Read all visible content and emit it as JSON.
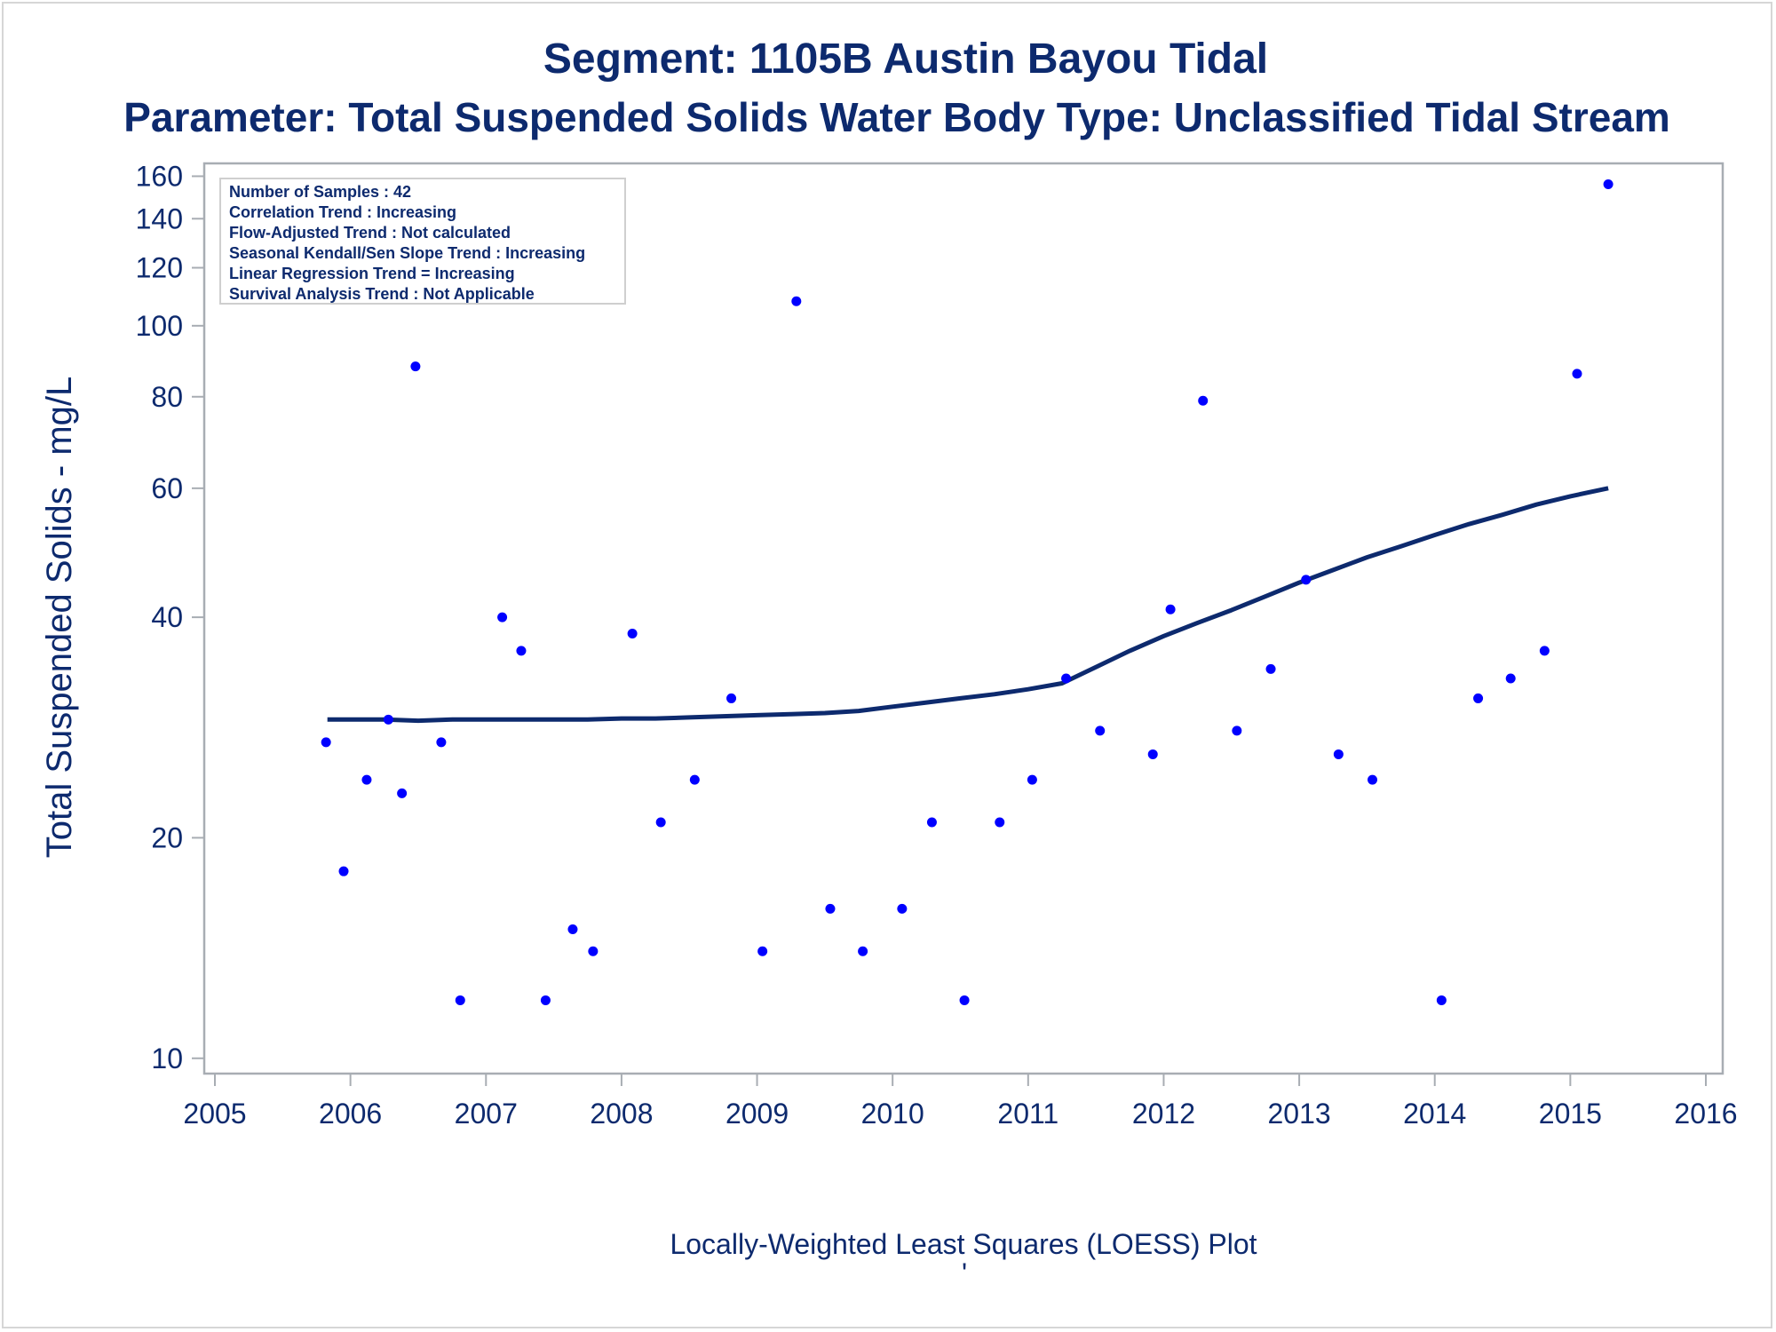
{
  "chart_data": {
    "type": "scatter",
    "title": "Segment: 1105B  Austin Bayou Tidal",
    "subtitle": "Parameter: Total Suspended Solids   Water Body Type: Unclassified Tidal Stream",
    "ylabel": "Total Suspended Solids - mg/L",
    "xlabel": "",
    "footnote": "Locally-Weighted Least Squares (LOESS) Plot",
    "footnote_mark": "'",
    "x_scale": "time",
    "y_scale": "log",
    "xlim": [
      2005,
      2016
    ],
    "ylim": [
      9.8,
      162
    ],
    "x_ticks": [
      "2005",
      "2006",
      "2007",
      "2008",
      "2009",
      "2010",
      "2011",
      "2012",
      "2013",
      "2014",
      "2015",
      "2016"
    ],
    "y_ticks": [
      10,
      20,
      40,
      60,
      80,
      100,
      120,
      140,
      160
    ],
    "grid": false,
    "point_color": "#0000ff",
    "line_color": "#0d2a6e",
    "stats_box": [
      "Number of Samples : 42",
      "Correlation Trend : Increasing",
      "Flow-Adjusted Trend : Not calculated",
      "Seasonal Kendall/Sen Slope Trend : Increasing",
      "Linear Regression Trend = Increasing",
      "Survival Analysis Trend : Not Applicable"
    ],
    "series": [
      {
        "kind": "points",
        "x": [
          2005.82,
          2005.95,
          2006.12,
          2006.28,
          2006.38,
          2006.48,
          2006.67,
          2006.81,
          2007.12,
          2007.26,
          2007.44,
          2007.64,
          2007.79,
          2008.08,
          2008.29,
          2008.54,
          2008.81,
          2009.04,
          2009.29,
          2009.54,
          2009.78,
          2010.07,
          2010.29,
          2010.53,
          2010.79,
          2011.03,
          2011.28,
          2011.53,
          2011.92,
          2012.05,
          2012.29,
          2012.54,
          2012.79,
          2013.05,
          2013.29,
          2013.54,
          2014.05,
          2014.32,
          2014.56,
          2014.81,
          2015.05,
          2015.28
        ],
        "y": [
          27,
          18,
          24,
          29,
          23,
          88,
          27,
          12,
          40,
          36,
          12,
          15,
          14,
          38,
          21,
          24,
          31,
          14,
          108,
          16,
          14,
          16,
          21,
          12,
          21,
          24,
          33,
          28,
          26,
          41,
          79,
          28,
          34,
          45,
          26,
          24,
          12,
          31,
          33,
          36,
          86,
          156
        ]
      },
      {
        "kind": "loess",
        "x": [
          2005.83,
          2006.0,
          2006.25,
          2006.5,
          2006.75,
          2007.0,
          2007.25,
          2007.5,
          2007.75,
          2008.0,
          2008.25,
          2008.5,
          2008.75,
          2009.0,
          2009.25,
          2009.5,
          2009.75,
          2010.0,
          2010.25,
          2010.5,
          2010.75,
          2011.0,
          2011.25,
          2011.5,
          2011.75,
          2012.0,
          2012.25,
          2012.5,
          2012.75,
          2013.0,
          2013.25,
          2013.5,
          2013.75,
          2014.0,
          2014.25,
          2014.5,
          2014.75,
          2015.0,
          2015.28
        ],
        "y": [
          29.0,
          29.0,
          29.0,
          28.9,
          29.0,
          29.0,
          29.0,
          29.0,
          29.0,
          29.1,
          29.1,
          29.2,
          29.3,
          29.4,
          29.5,
          29.6,
          29.8,
          30.2,
          30.6,
          31.0,
          31.4,
          31.9,
          32.5,
          34.2,
          36.0,
          37.7,
          39.3,
          40.9,
          42.7,
          44.6,
          46.4,
          48.3,
          50.0,
          51.8,
          53.6,
          55.2,
          57.0,
          58.5,
          60.0
        ]
      }
    ]
  }
}
